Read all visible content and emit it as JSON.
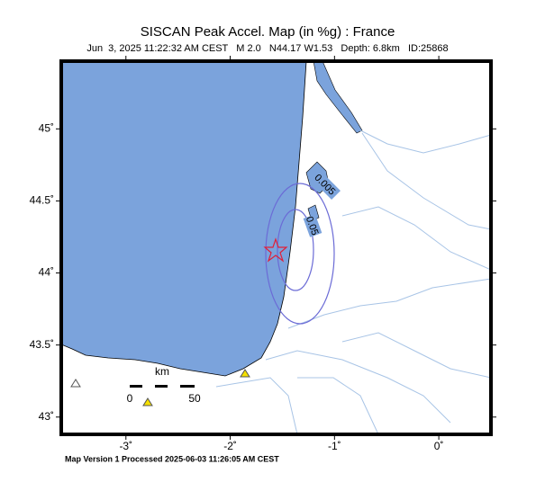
{
  "title": "SISCAN Peak Accel. Map (in %g) : France",
  "subtitle": "Jun  3, 2025 11:22:32 AM CEST   M 2.0   N44.17 W1.53   Depth: 6.8km   ID:25868",
  "map": {
    "xlim": [
      -3.62,
      0.5
    ],
    "ylim": [
      42.88,
      45.47
    ],
    "xticks": [
      {
        "value": -3,
        "label": "-3˚"
      },
      {
        "value": -2,
        "label": "-2˚"
      },
      {
        "value": -1,
        "label": "-1˚"
      },
      {
        "value": 0,
        "label": "0˚"
      }
    ],
    "yticks": [
      {
        "value": 45,
        "label": "45˚"
      },
      {
        "value": 44.5,
        "label": "44.5˚"
      },
      {
        "value": 44,
        "label": "44˚"
      },
      {
        "value": 43.5,
        "label": "43.5˚"
      },
      {
        "value": 43,
        "label": "43˚"
      }
    ],
    "contour_labels": [
      "0.005",
      "0.05"
    ],
    "scale_bar": {
      "unit": "km",
      "start": "0",
      "end": "50"
    }
  },
  "footer": "Map Version 1 Processed 2025-06-03 11:26:05 AM CEST"
}
